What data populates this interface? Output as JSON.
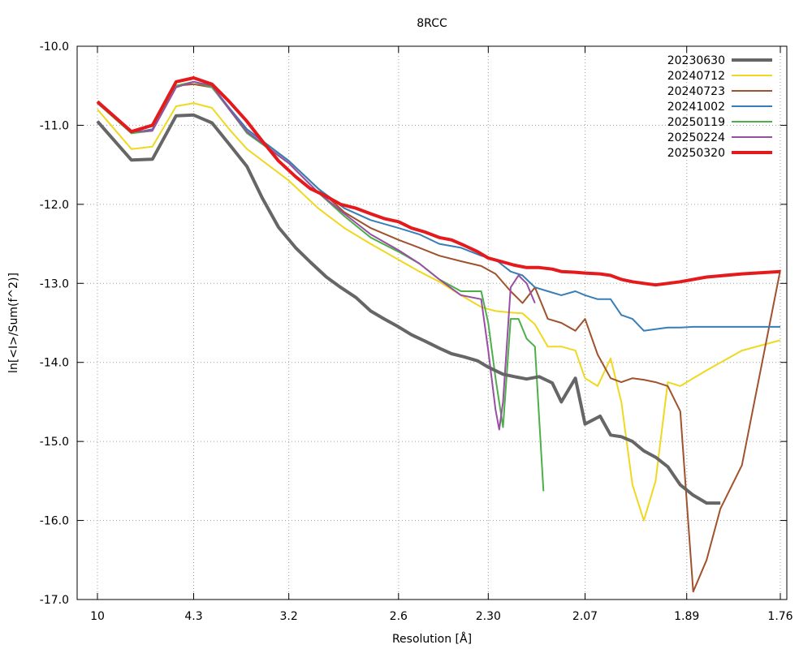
{
  "chart_data": {
    "type": "line",
    "title": "8RCC",
    "xlabel": "Resolution [Å]",
    "ylabel": "ln[<I>/Sum(f^2)]",
    "x_scale": "1/d^2",
    "x_ticks": [
      "10",
      "4.3",
      "3.2",
      "2.6",
      "2.30",
      "2.07",
      "1.89",
      "1.76"
    ],
    "y_ticks": [
      "-10.0",
      "-11.0",
      "-12.0",
      "-13.0",
      "-14.0",
      "-15.0",
      "-16.0",
      "-17.0"
    ],
    "ylim": [
      -17.0,
      -10.0
    ],
    "grid": true,
    "legend_position": "top-right",
    "series": [
      {
        "name": "20230630",
        "color": "#666666",
        "width": 4,
        "x": [
          10.0,
          6.25,
          5.33,
          4.66,
          4.3,
          4.0,
          3.77,
          3.57,
          3.42,
          3.28,
          3.15,
          3.05,
          2.95,
          2.87,
          2.79,
          2.72,
          2.66,
          2.6,
          2.55,
          2.5,
          2.45,
          2.41,
          2.37,
          2.33,
          2.3,
          2.26,
          2.23,
          2.2,
          2.17,
          2.14,
          2.12,
          2.09,
          2.07,
          2.04,
          2.02,
          2.0,
          1.98,
          1.96,
          1.94,
          1.92,
          1.9,
          1.88,
          1.86,
          1.84
        ],
        "y": [
          -10.95,
          -11.44,
          -11.43,
          -10.88,
          -10.87,
          -10.97,
          -11.24,
          -11.52,
          -11.92,
          -12.29,
          -12.55,
          -12.73,
          -12.92,
          -13.05,
          -13.18,
          -13.35,
          -13.45,
          -13.55,
          -13.65,
          -13.73,
          -13.82,
          -13.89,
          -13.93,
          -13.98,
          -14.06,
          -14.15,
          -14.18,
          -14.21,
          -14.18,
          -14.26,
          -14.5,
          -14.2,
          -14.78,
          -14.68,
          -14.92,
          -14.94,
          -15.0,
          -15.12,
          -15.2,
          -15.32,
          -15.55,
          -15.68,
          -15.78,
          -15.78
        ],
        "x_note": ""
      },
      {
        "name": "20240712",
        "color": "#f0d821",
        "width": 2,
        "y": [
          -10.8,
          -11.3,
          -11.27,
          -10.76,
          -10.72,
          -10.78,
          -11.05,
          -11.3,
          -11.7,
          -12.05,
          -12.3,
          -12.5,
          -12.7,
          -12.85,
          -12.98,
          -13.15,
          -13.3,
          -13.35,
          -13.37,
          -13.38,
          -13.52,
          -13.8,
          -13.8,
          -13.85,
          -14.2,
          -14.3,
          -13.95,
          -14.5,
          -15.55,
          -16.0,
          -15.5,
          -14.25,
          -14.3,
          -14.1,
          -13.85,
          -13.72
        ],
        "x": [
          10.0,
          6.25,
          5.33,
          4.66,
          4.3,
          4.0,
          3.77,
          3.57,
          3.2,
          3.0,
          2.85,
          2.72,
          2.6,
          2.52,
          2.45,
          2.38,
          2.32,
          2.28,
          2.24,
          2.21,
          2.18,
          2.15,
          2.12,
          2.09,
          2.07,
          2.045,
          2.02,
          2.0,
          1.98,
          1.96,
          1.94,
          1.92,
          1.9,
          1.86,
          1.81,
          1.76
        ]
      },
      {
        "name": "20240723",
        "color": "#a0522d",
        "width": 2,
        "x": [
          10.0,
          6.25,
          5.33,
          4.66,
          4.3,
          4.0,
          3.77,
          3.57,
          3.2,
          3.0,
          2.85,
          2.72,
          2.6,
          2.52,
          2.45,
          2.38,
          2.32,
          2.28,
          2.24,
          2.21,
          2.18,
          2.15,
          2.12,
          2.09,
          2.07,
          2.045,
          2.02,
          2.0,
          1.98,
          1.96,
          1.94,
          1.92,
          1.9,
          1.88,
          1.86,
          1.84,
          1.81,
          1.76
        ],
        "y": [
          -10.72,
          -11.1,
          -11.05,
          -10.5,
          -10.48,
          -10.52,
          -10.78,
          -11.05,
          -11.45,
          -11.8,
          -12.1,
          -12.3,
          -12.45,
          -12.55,
          -12.65,
          -12.72,
          -12.78,
          -12.88,
          -13.1,
          -13.25,
          -13.05,
          -13.45,
          -13.5,
          -13.6,
          -13.45,
          -13.9,
          -14.2,
          -14.25,
          -14.2,
          -14.22,
          -14.25,
          -14.3,
          -14.62,
          -16.9,
          -16.5,
          -15.85,
          -15.3,
          -12.83
        ]
      },
      {
        "name": "20241002",
        "color": "#377eb8",
        "width": 2,
        "x": [
          10.0,
          6.25,
          5.33,
          4.66,
          4.3,
          4.0,
          3.77,
          3.57,
          3.2,
          3.0,
          2.85,
          2.72,
          2.6,
          2.52,
          2.45,
          2.38,
          2.32,
          2.28,
          2.24,
          2.21,
          2.18,
          2.15,
          2.12,
          2.09,
          2.07,
          2.045,
          2.02,
          2.0,
          1.98,
          1.96,
          1.94,
          1.92,
          1.9,
          1.88,
          1.86,
          1.76
        ],
        "y": [
          -10.7,
          -11.1,
          -11.05,
          -10.5,
          -10.45,
          -10.5,
          -10.78,
          -11.05,
          -11.45,
          -11.8,
          -12.05,
          -12.2,
          -12.3,
          -12.38,
          -12.5,
          -12.55,
          -12.65,
          -12.7,
          -12.85,
          -12.9,
          -13.05,
          -13.1,
          -13.15,
          -13.1,
          -13.15,
          -13.2,
          -13.2,
          -13.4,
          -13.45,
          -13.6,
          -13.58,
          -13.56,
          -13.56,
          -13.55,
          -13.55,
          -13.55
        ]
      },
      {
        "name": "20250119",
        "color": "#4daf4a",
        "width": 2,
        "x": [
          10.0,
          6.25,
          5.33,
          4.66,
          4.3,
          4.0,
          3.77,
          3.57,
          3.2,
          3.0,
          2.85,
          2.72,
          2.6,
          2.52,
          2.45,
          2.38,
          2.32,
          2.3,
          2.28,
          2.26,
          2.24,
          2.22,
          2.2,
          2.18,
          2.16
        ],
        "y": [
          -10.72,
          -11.1,
          -11.07,
          -10.5,
          -10.45,
          -10.52,
          -10.8,
          -11.1,
          -11.48,
          -11.85,
          -12.15,
          -12.42,
          -12.6,
          -12.75,
          -12.95,
          -13.1,
          -13.1,
          -13.5,
          -14.2,
          -14.82,
          -13.45,
          -13.45,
          -13.7,
          -13.8,
          -15.63
        ]
      },
      {
        "name": "20250224",
        "color": "#984ea3",
        "width": 2,
        "x": [
          10.0,
          6.25,
          5.33,
          4.66,
          4.3,
          4.0,
          3.77,
          3.57,
          3.2,
          3.0,
          2.85,
          2.72,
          2.6,
          2.52,
          2.45,
          2.38,
          2.32,
          2.3,
          2.28,
          2.27,
          2.26,
          2.24,
          2.22,
          2.2,
          2.18
        ],
        "y": [
          -10.72,
          -11.08,
          -11.07,
          -10.52,
          -10.45,
          -10.5,
          -10.8,
          -11.08,
          -11.48,
          -11.85,
          -12.12,
          -12.38,
          -12.58,
          -12.75,
          -12.95,
          -13.15,
          -13.2,
          -13.85,
          -14.6,
          -14.85,
          -14.5,
          -13.05,
          -12.9,
          -13.0,
          -13.25
        ]
      },
      {
        "name": "20250320",
        "color": "#e41a1c",
        "width": 4,
        "x": [
          10.0,
          6.25,
          5.33,
          4.66,
          4.3,
          4.0,
          3.77,
          3.57,
          3.42,
          3.28,
          3.15,
          3.05,
          2.95,
          2.87,
          2.79,
          2.72,
          2.66,
          2.6,
          2.55,
          2.5,
          2.45,
          2.41,
          2.37,
          2.33,
          2.3,
          2.26,
          2.23,
          2.2,
          2.17,
          2.14,
          2.12,
          2.09,
          2.07,
          2.04,
          2.02,
          2.0,
          1.98,
          1.96,
          1.94,
          1.92,
          1.9,
          1.86,
          1.81,
          1.76
        ],
        "y": [
          -10.7,
          -11.08,
          -11.0,
          -10.45,
          -10.4,
          -10.48,
          -10.7,
          -10.95,
          -11.2,
          -11.45,
          -11.65,
          -11.8,
          -11.9,
          -12.0,
          -12.05,
          -12.12,
          -12.18,
          -12.22,
          -12.3,
          -12.35,
          -12.42,
          -12.45,
          -12.52,
          -12.6,
          -12.68,
          -12.73,
          -12.77,
          -12.8,
          -12.8,
          -12.82,
          -12.85,
          -12.86,
          -12.87,
          -12.88,
          -12.9,
          -12.95,
          -12.98,
          -13.0,
          -13.02,
          -13.0,
          -12.98,
          -12.92,
          -12.88,
          -12.85
        ]
      }
    ]
  }
}
